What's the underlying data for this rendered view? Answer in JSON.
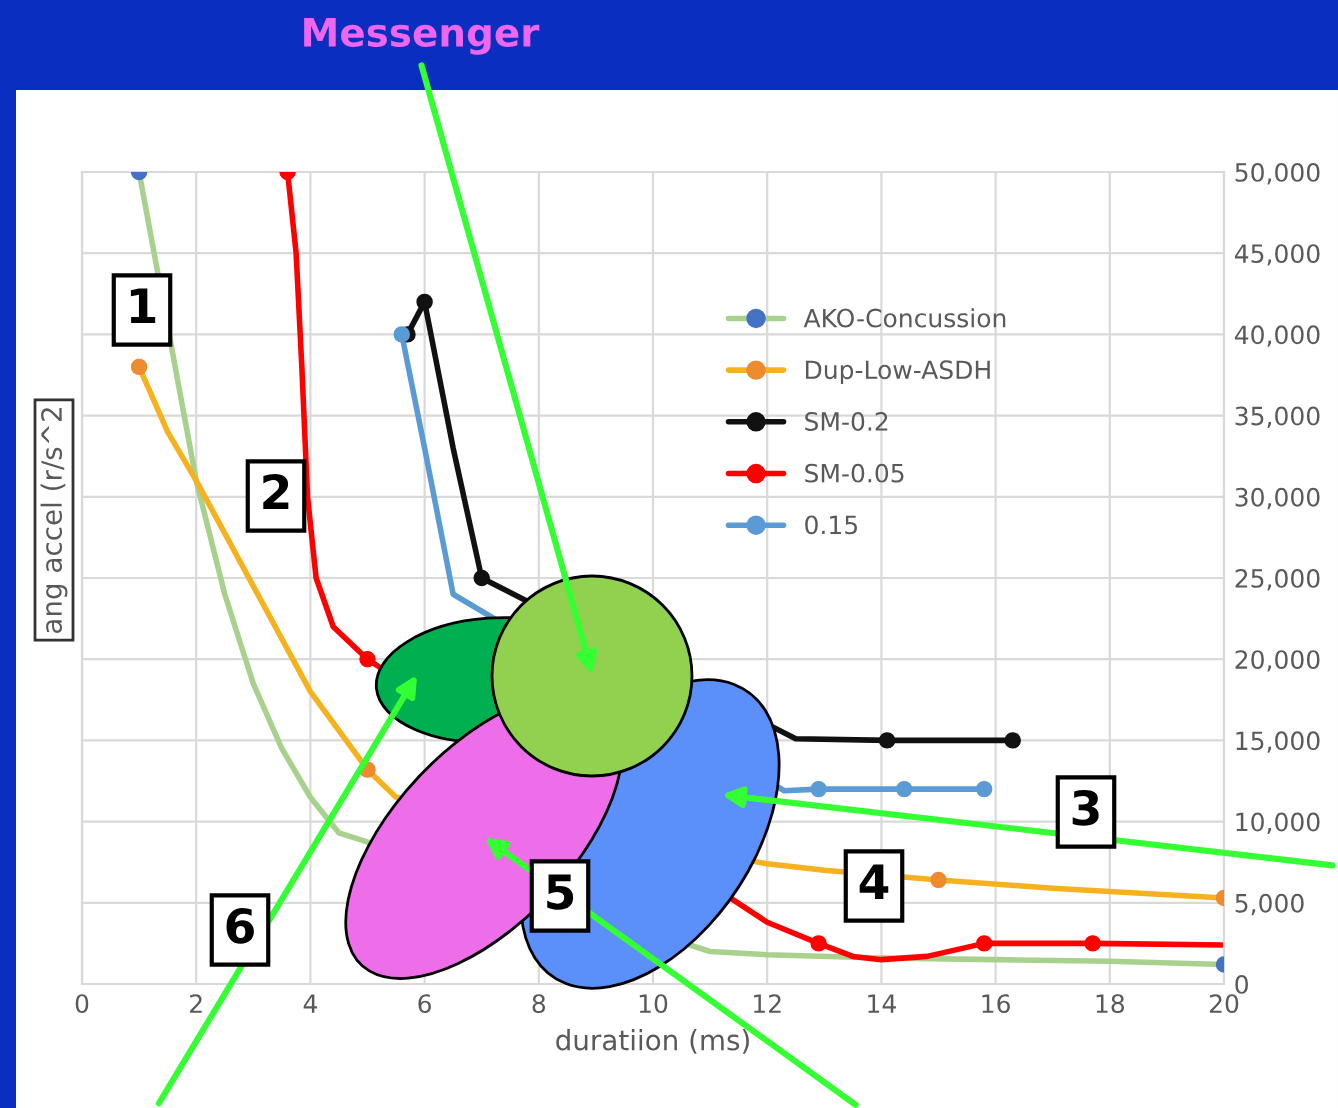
{
  "chart_data": {
    "type": "line",
    "title": "Messenger",
    "xlabel": "duratiion (ms)",
    "ylabel": "ang accel (r/s^2",
    "xlim": [
      0,
      20
    ],
    "xticks": [
      0,
      2,
      4,
      6,
      8,
      10,
      12,
      14,
      16,
      18,
      20
    ],
    "ylim": [
      0,
      50000
    ],
    "yticks": [
      {
        "value": 0,
        "label": "0"
      },
      {
        "value": 5000,
        "label": "5,000"
      },
      {
        "value": 10000,
        "label": "10,000"
      },
      {
        "value": 15000,
        "label": "15,000"
      },
      {
        "value": 20000,
        "label": "20,000"
      },
      {
        "value": 25000,
        "label": "25,000"
      },
      {
        "value": 30000,
        "label": "30,000"
      },
      {
        "value": 35000,
        "label": "35,000"
      },
      {
        "value": 40000,
        "label": "40,000"
      },
      {
        "value": 45000,
        "label": "45,000"
      },
      {
        "value": 50000,
        "label": "50,000"
      }
    ],
    "grid": true,
    "legend": "top right",
    "annotations": [
      "1",
      "2",
      "3",
      "4",
      "5",
      "6"
    ],
    "series": [
      {
        "name": "AKO-Concussion",
        "marker": "none",
        "color": "#a9d18e",
        "x": [
          1,
          2,
          2.5,
          3,
          3.5,
          4,
          4.5,
          11,
          12,
          14,
          16,
          18,
          20
        ],
        "values": [
          50000,
          31000,
          24000,
          18500,
          14500,
          11500,
          9300,
          2000,
          1800,
          1600,
          1500,
          1400,
          1200
        ]
      },
      {
        "type": "scatter",
        "marker": "circle",
        "color": "#4472c4",
        "x": [
          1,
          20
        ],
        "values": [
          50000,
          1200
        ]
      },
      {
        "name": "Dup-Low-ASDH",
        "marker": "none",
        "color": "#f5b21e",
        "x": [
          1,
          1.5,
          2,
          3,
          4,
          5,
          5.5,
          12,
          13,
          15,
          17,
          20
        ],
        "values": [
          38000,
          34000,
          31000,
          24500,
          18000,
          13200,
          11500,
          7400,
          7000,
          6400,
          5900,
          5300
        ]
      },
      {
        "type": "scatter",
        "marker": "circle",
        "color": "#ed8b2f",
        "x": [
          1,
          5,
          15,
          20
        ],
        "values": [
          38000,
          13200,
          6400,
          5300
        ]
      },
      {
        "name": "SM-0.2",
        "marker": "none",
        "color": "#111111",
        "x": [
          5.7,
          6.0,
          6.5,
          7.0,
          12.5,
          14.1,
          16.3
        ],
        "values": [
          40000,
          42000,
          33000,
          25000,
          15100,
          15000,
          15000
        ]
      },
      {
        "type": "scatter",
        "marker": "circle",
        "color": "#111111",
        "x": [
          5.7,
          6.0,
          7.0,
          14.1,
          16.3
        ],
        "values": [
          40000,
          42000,
          25000,
          15000,
          15000
        ]
      },
      {
        "name": "SM-0.05",
        "marker": "none",
        "color": "#ff0000",
        "x": [
          3.6,
          3.75,
          3.85,
          3.95,
          4.1,
          4.4,
          5,
          12,
          12.9,
          13.5,
          14,
          14.8,
          15.8,
          17.7,
          20
        ],
        "values": [
          50000,
          45000,
          38000,
          30000,
          25000,
          22000,
          20000,
          3800,
          2500,
          1700,
          1500,
          1700,
          2500,
          2500,
          2400
        ]
      },
      {
        "type": "scatter",
        "marker": "circle",
        "color": "#ff0000",
        "x": [
          3.6,
          5,
          12.9,
          15.8,
          17.7
        ],
        "values": [
          50000,
          20000,
          2500,
          2500,
          2500
        ]
      },
      {
        "name": "0.15",
        "marker": "none",
        "color": "#5b9bd5",
        "x": [
          5.6,
          6.0,
          6.5,
          12.3,
          12.9,
          14.4,
          15.8
        ],
        "values": [
          40000,
          33000,
          24000,
          11900,
          12000,
          12000,
          12000
        ]
      },
      {
        "type": "scatter",
        "marker": "circle",
        "color": "#5b9bd5",
        "x": [
          5.6,
          12.9,
          14.4,
          15.8
        ],
        "values": [
          40000,
          12000,
          12000,
          12000
        ]
      }
    ]
  }
}
